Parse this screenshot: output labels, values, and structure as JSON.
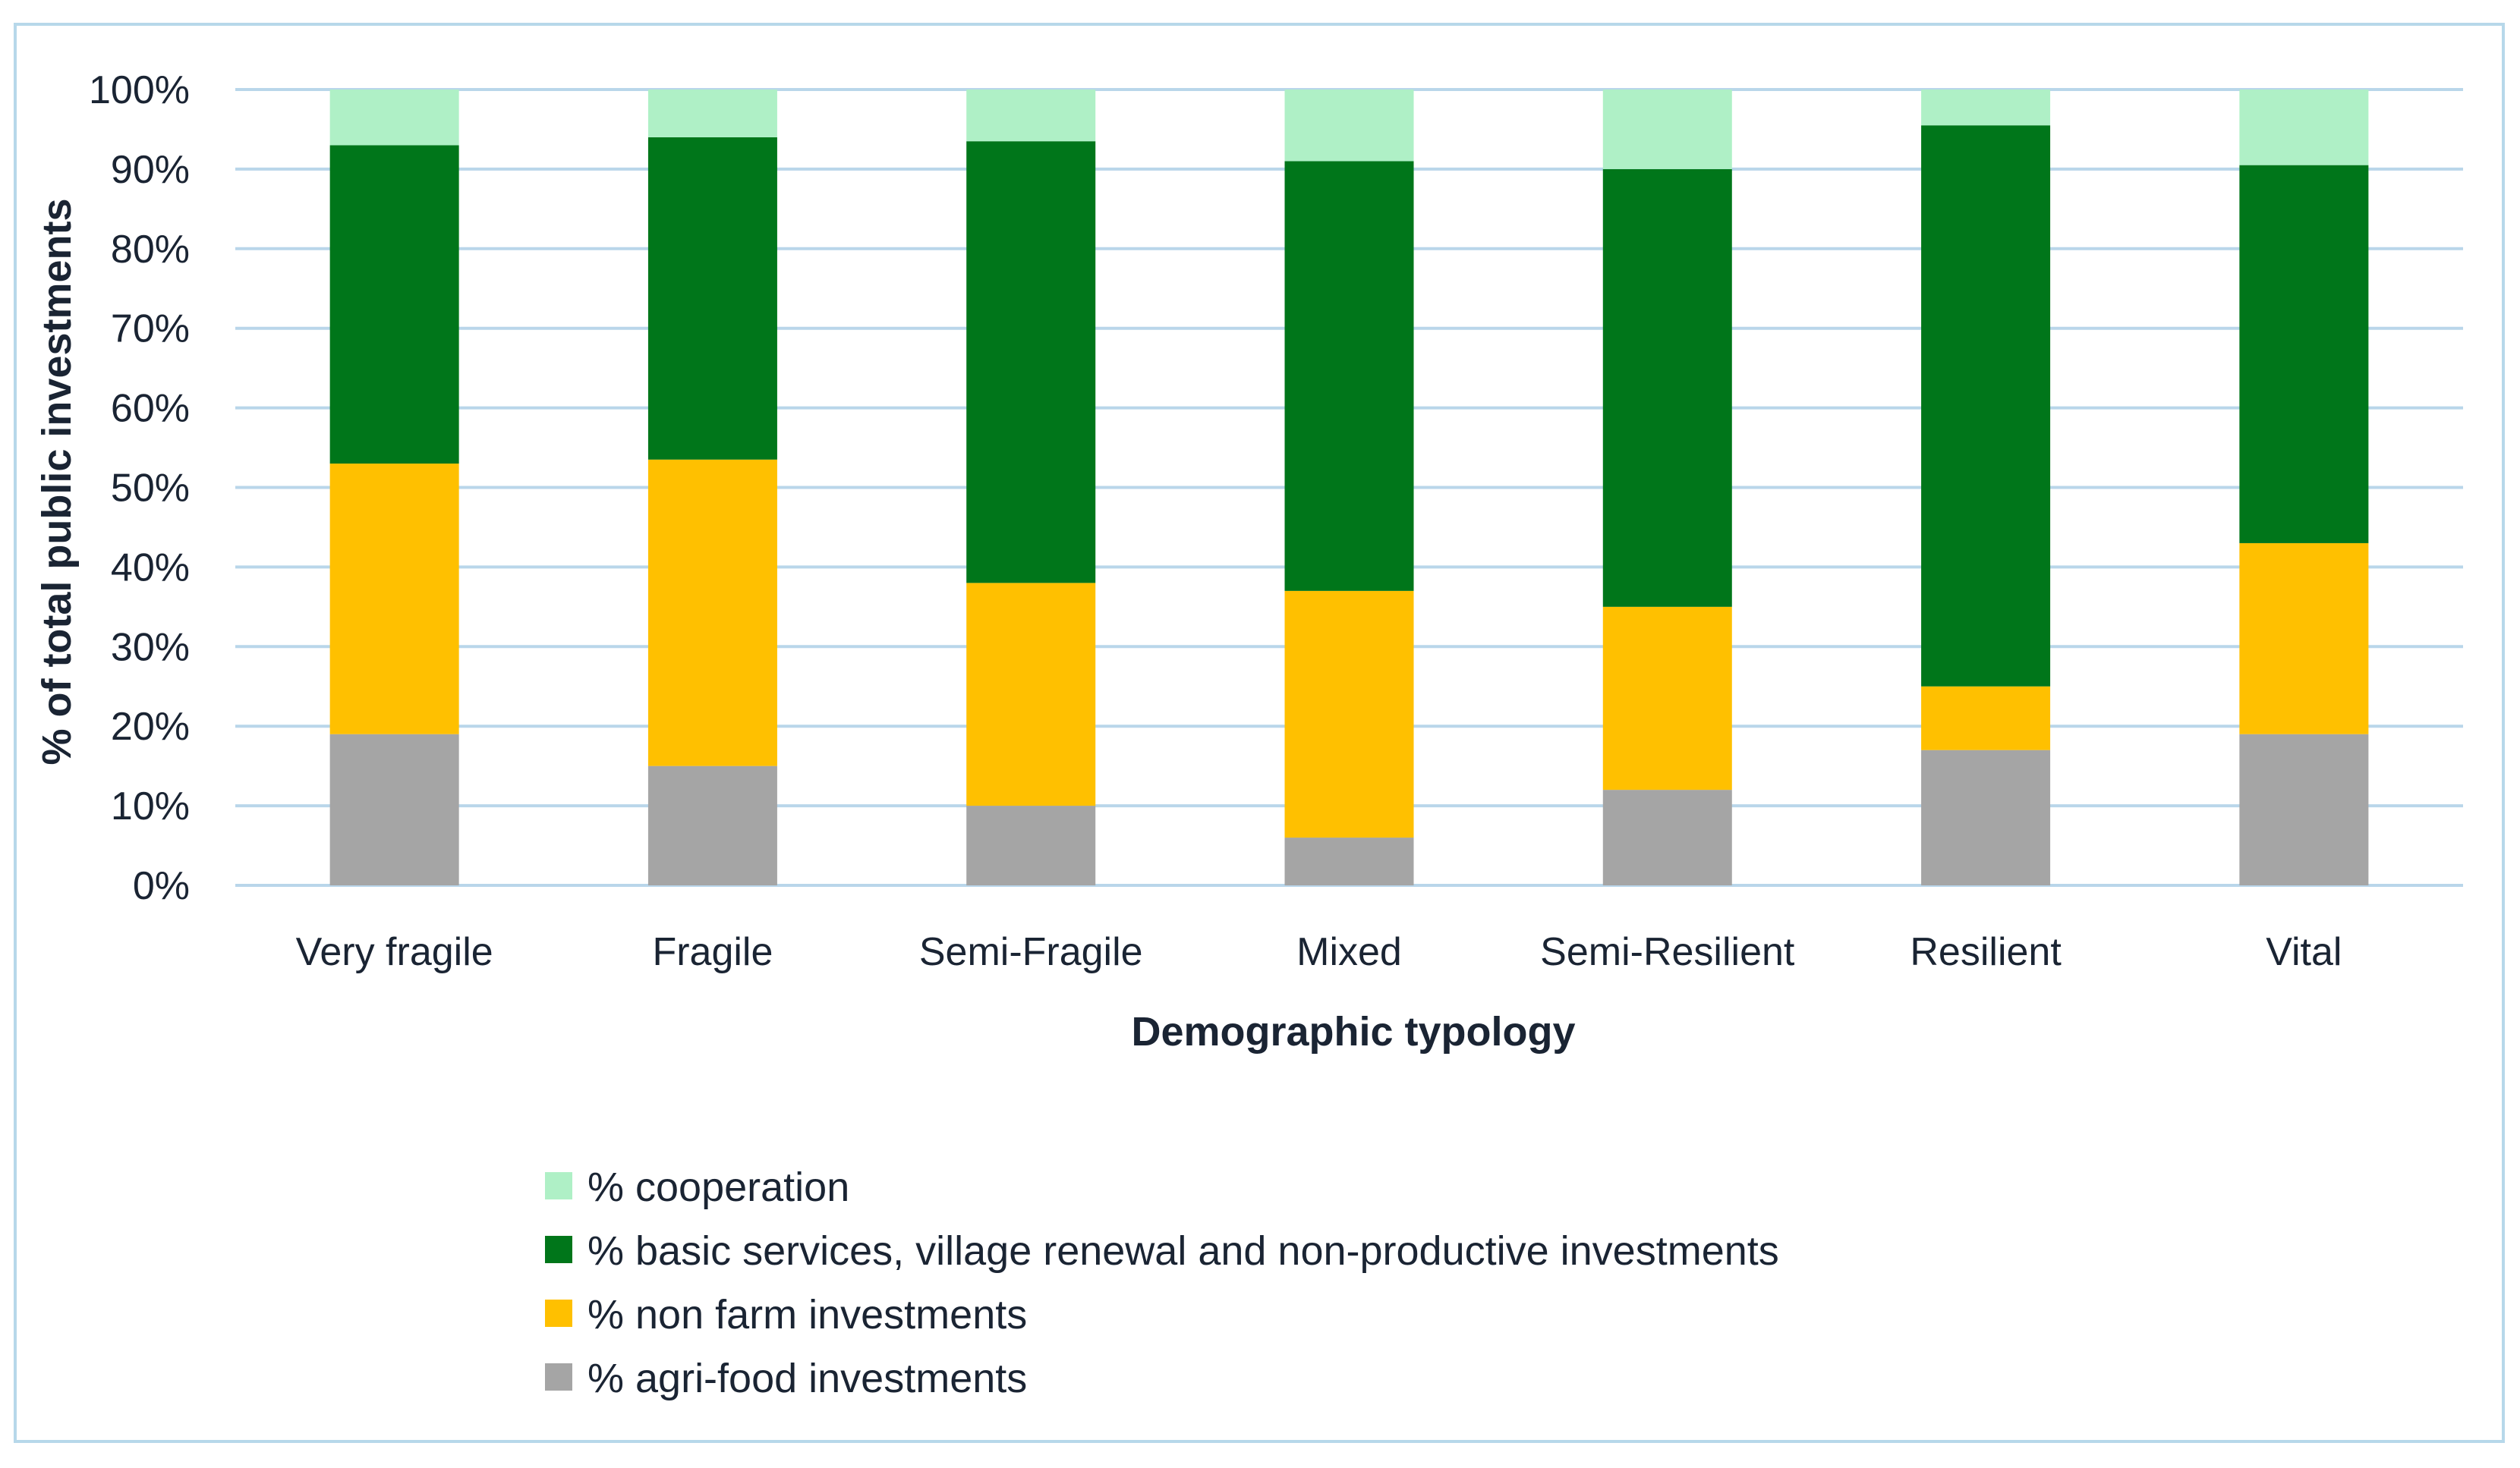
{
  "chart_data": {
    "type": "bar",
    "stacked": true,
    "title": "",
    "xlabel": "Demographic typology",
    "ylabel": "% of total public investments",
    "ylim": [
      0,
      100
    ],
    "yticks": [
      "0%",
      "10%",
      "20%",
      "30%",
      "40%",
      "50%",
      "60%",
      "70%",
      "80%",
      "90%",
      "100%"
    ],
    "categories": [
      "Very fragile",
      "Fragile",
      "Semi-Fragile",
      "Mixed",
      "Semi-Resilient",
      "Resilient",
      "Vital"
    ],
    "series": [
      {
        "name": "% agri-food investments",
        "color": "#a5a5a5",
        "values": [
          19,
          15,
          10,
          6,
          12,
          17,
          19
        ]
      },
      {
        "name": "% non farm investments",
        "color": "#ffc000",
        "values": [
          34,
          38.5,
          28,
          31,
          23,
          8,
          24
        ]
      },
      {
        "name": "% basic services, village renewal and non-productive investments",
        "color": "#00761a",
        "values": [
          40,
          40.5,
          55.5,
          54,
          55,
          70.5,
          47.5
        ]
      },
      {
        "name": "% cooperation",
        "color": "#aff0c6",
        "values": [
          7,
          6,
          6.5,
          9,
          10,
          4.5,
          9.5
        ]
      }
    ],
    "legend_order": [
      3,
      2,
      1,
      0
    ],
    "grid": true,
    "legend_position": "bottom"
  }
}
